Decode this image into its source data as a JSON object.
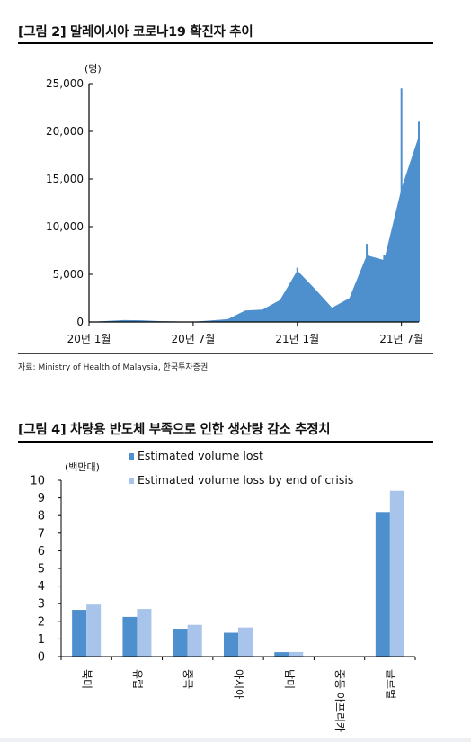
{
  "figure2": {
    "title": "[그림 2] 말레이시아 코로나19 확진자 추이",
    "source": "자료: Ministry of Health of Malaysia, 한국투자증권"
  },
  "figure4": {
    "title": "[그림 4] 차량용 반도체 부족으로 인한 생산량 감소 추정치"
  },
  "colors": {
    "series1": "#4e8fcd",
    "series2": "#a9c4ea"
  },
  "chart_data": [
    {
      "type": "area",
      "ylabel": "(명)",
      "ylim": [
        0,
        25000
      ],
      "yticks": [
        "25,000",
        "20,000",
        "15,000",
        "10,000",
        "5,000",
        "0"
      ],
      "yticks_values": [
        25000,
        20000,
        15000,
        10000,
        5000,
        0
      ],
      "xticks": [
        "20년 1월",
        "20년 7월",
        "21년 1월",
        "21년 7월"
      ],
      "xticks_dates": [
        "2020-01",
        "2020-07",
        "2021-01",
        "2021-07"
      ],
      "xlim": [
        "2020-01",
        "2021-08"
      ],
      "x": [
        "2020-01",
        "2020-03",
        "2020-04",
        "2020-05",
        "2020-07",
        "2020-09",
        "2020-10",
        "2020-11",
        "2020-12",
        "2021-01",
        "2021-02",
        "2021-03",
        "2021-04",
        "2021-05",
        "2021-06",
        "2021-07",
        "2021-08"
      ],
      "values": [
        0,
        200,
        180,
        100,
        20,
        300,
        1200,
        1300,
        2300,
        5400,
        3500,
        1500,
        2500,
        7000,
        6500,
        14000,
        19500
      ],
      "spikes": {
        "x": [
          "2021-01",
          "2021-05",
          "2021-06",
          "2021-07",
          "2021-08"
        ],
        "values": [
          5700,
          8200,
          7000,
          24500,
          21000
        ]
      },
      "grid": false
    },
    {
      "type": "bar",
      "ylabel": "(백만대)",
      "ylim": [
        0,
        10
      ],
      "yticks": [
        "10",
        "9",
        "8",
        "7",
        "6",
        "5",
        "4",
        "3",
        "2",
        "1",
        "0"
      ],
      "categories": [
        "북미",
        "유럽",
        "중국",
        "아시아",
        "남미",
        "중동 아프리카",
        "글로벌"
      ],
      "series": [
        {
          "name": "Estimated volume lost",
          "values": [
            2.65,
            2.25,
            1.58,
            1.35,
            0.25,
            0.0,
            8.2
          ]
        },
        {
          "name": "Estimated volume loss by end of crisis",
          "values": [
            2.95,
            2.7,
            1.8,
            1.65,
            0.26,
            0.0,
            9.4
          ]
        }
      ],
      "legend": "top",
      "grid": false
    }
  ]
}
